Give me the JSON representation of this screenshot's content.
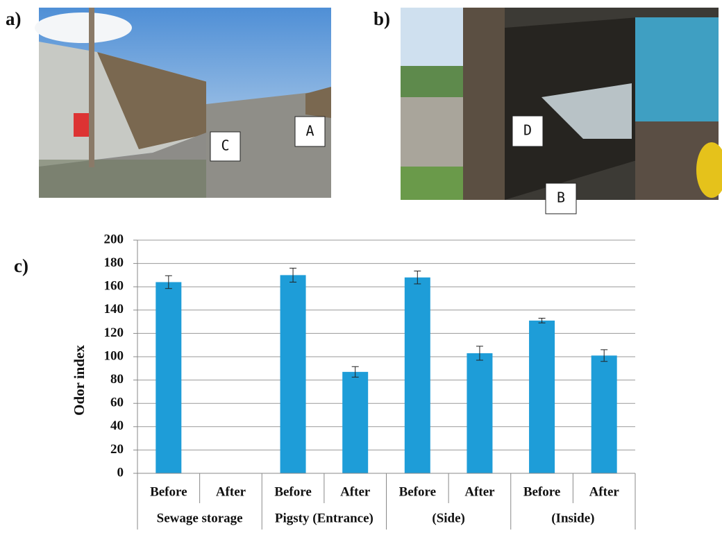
{
  "panel_labels": [
    "a)",
    "b)",
    "c)"
  ],
  "photo_a_markers": [
    "C",
    "A"
  ],
  "photo_b_markers": [
    "D",
    "B"
  ],
  "chart_data": {
    "type": "bar",
    "y_label": "Odor index",
    "categories": [
      "Before",
      "After",
      "Before",
      "After",
      "Before",
      "After",
      "Before",
      "After"
    ],
    "groups": [
      "Sewage storage",
      "Pigsty (Entrance)",
      "(Side)",
      "(Inside)"
    ],
    "series": [
      {
        "name": "Odor index",
        "color": "#1e9dd8",
        "values": [
          164,
          null,
          170,
          87,
          168,
          103,
          131,
          101
        ],
        "errors": [
          5.5,
          null,
          6,
          4.5,
          5.5,
          6,
          2,
          5
        ]
      }
    ],
    "ylim": [
      0,
      200
    ],
    "yticks": [
      0,
      20,
      40,
      60,
      80,
      100,
      120,
      140,
      160,
      180,
      200
    ],
    "grid": true
  }
}
